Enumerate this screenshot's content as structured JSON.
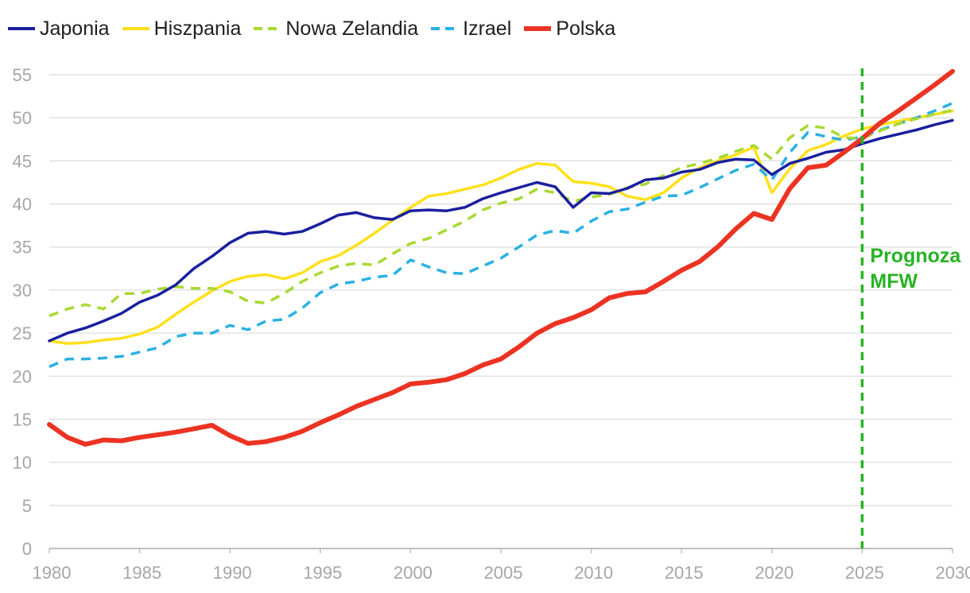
{
  "chart_data": {
    "type": "line",
    "title": "",
    "xlabel": "",
    "ylabel": "",
    "xlim": [
      1980,
      2030
    ],
    "ylim": [
      0,
      55
    ],
    "x_ticks": [
      1980,
      1985,
      1990,
      1995,
      2000,
      2005,
      2010,
      2015,
      2020,
      2025,
      2030
    ],
    "y_ticks": [
      0,
      5,
      10,
      15,
      20,
      25,
      30,
      35,
      40,
      45,
      50,
      55
    ],
    "grid": "horizontal",
    "legend_position": "top-left",
    "annotation": {
      "text_line1": "Prognoza",
      "text_line2": "MFW",
      "x": 2025,
      "color": "#27b324"
    },
    "x": [
      1980,
      1981,
      1982,
      1983,
      1984,
      1985,
      1986,
      1987,
      1988,
      1989,
      1990,
      1991,
      1992,
      1993,
      1994,
      1995,
      1996,
      1997,
      1998,
      1999,
      2000,
      2001,
      2002,
      2003,
      2004,
      2005,
      2006,
      2007,
      2008,
      2009,
      2010,
      2011,
      2012,
      2013,
      2014,
      2015,
      2016,
      2017,
      2018,
      2019,
      2020,
      2021,
      2022,
      2023,
      2024,
      2025,
      2026,
      2027,
      2028,
      2029,
      2030
    ],
    "series": [
      {
        "name": "Japonia",
        "color": "#1a1f9e",
        "style": "solid",
        "width": 3.5,
        "values": [
          24.1,
          25.0,
          25.6,
          26.4,
          27.3,
          28.6,
          29.4,
          30.6,
          32.5,
          33.9,
          35.5,
          36.6,
          36.8,
          36.5,
          36.8,
          37.7,
          38.7,
          39.0,
          38.4,
          38.2,
          39.2,
          39.3,
          39.2,
          39.6,
          40.6,
          41.3,
          41.9,
          42.5,
          42.0,
          39.6,
          41.3,
          41.2,
          41.8,
          42.8,
          43.0,
          43.7,
          44.0,
          44.8,
          45.2,
          45.1,
          43.4,
          44.7,
          45.3,
          46.0,
          46.3,
          47.0,
          47.6,
          48.1,
          48.6,
          49.2,
          49.7
        ]
      },
      {
        "name": "Hiszpania",
        "color": "#ffe01a",
        "style": "solid",
        "width": 3.5,
        "values": [
          24.1,
          23.8,
          23.9,
          24.2,
          24.4,
          24.9,
          25.7,
          27.2,
          28.6,
          29.9,
          31.0,
          31.6,
          31.8,
          31.3,
          32.0,
          33.3,
          34.0,
          35.2,
          36.6,
          38.1,
          39.6,
          40.9,
          41.2,
          41.7,
          42.2,
          43.0,
          44.0,
          44.7,
          44.5,
          42.6,
          42.4,
          42.0,
          40.9,
          40.5,
          41.3,
          43.0,
          44.2,
          45.0,
          45.7,
          46.6,
          41.3,
          44.1,
          46.2,
          46.9,
          47.9,
          48.7,
          49.2,
          49.6,
          50.0,
          50.4,
          50.8
        ]
      },
      {
        "name": "Nowa Zelandia",
        "color": "#a8d932",
        "style": "dashed",
        "width": 3.5,
        "values": [
          27.0,
          27.8,
          28.3,
          27.8,
          29.6,
          29.6,
          30.1,
          30.4,
          30.2,
          30.2,
          29.8,
          28.7,
          28.5,
          29.6,
          31.0,
          32.0,
          32.8,
          33.1,
          32.9,
          34.2,
          35.4,
          36.0,
          37.0,
          38.0,
          39.3,
          40.1,
          40.6,
          41.7,
          41.3,
          40.3,
          40.8,
          41.1,
          41.9,
          42.3,
          43.3,
          44.2,
          44.7,
          45.3,
          46.1,
          46.8,
          45.2,
          47.7,
          49.1,
          48.8,
          47.7,
          47.6,
          48.5,
          49.3,
          49.9,
          50.4,
          50.9
        ]
      },
      {
        "name": "Izrael",
        "color": "#2ab1e3",
        "style": "dashed",
        "width": 3.5,
        "values": [
          21.1,
          22.0,
          22.0,
          22.1,
          22.3,
          22.8,
          23.3,
          24.6,
          25.0,
          25.0,
          25.9,
          25.4,
          26.4,
          26.6,
          27.9,
          29.7,
          30.7,
          31.0,
          31.5,
          31.7,
          33.5,
          32.7,
          32.0,
          31.9,
          32.8,
          33.7,
          35.0,
          36.4,
          36.9,
          36.6,
          38.0,
          39.1,
          39.4,
          40.2,
          40.9,
          41.0,
          41.9,
          42.9,
          43.9,
          44.6,
          42.8,
          46.0,
          48.3,
          47.8,
          47.4,
          47.8,
          48.6,
          49.3,
          50.0,
          50.8,
          51.7
        ]
      },
      {
        "name": "Polska",
        "color": "#ec3323",
        "style": "solid",
        "width": 6,
        "values": [
          14.4,
          12.9,
          12.1,
          12.6,
          12.5,
          12.9,
          13.2,
          13.5,
          13.9,
          14.3,
          13.1,
          12.2,
          12.4,
          12.9,
          13.6,
          14.6,
          15.5,
          16.5,
          17.3,
          18.1,
          19.1,
          19.3,
          19.6,
          20.3,
          21.3,
          22.0,
          23.4,
          25.0,
          26.1,
          26.8,
          27.7,
          29.1,
          29.6,
          29.8,
          31.0,
          32.3,
          33.3,
          35.0,
          37.1,
          38.9,
          38.2,
          41.8,
          44.2,
          44.5,
          46.0,
          47.6,
          49.4,
          50.8,
          52.3,
          53.8,
          55.4
        ]
      }
    ]
  }
}
